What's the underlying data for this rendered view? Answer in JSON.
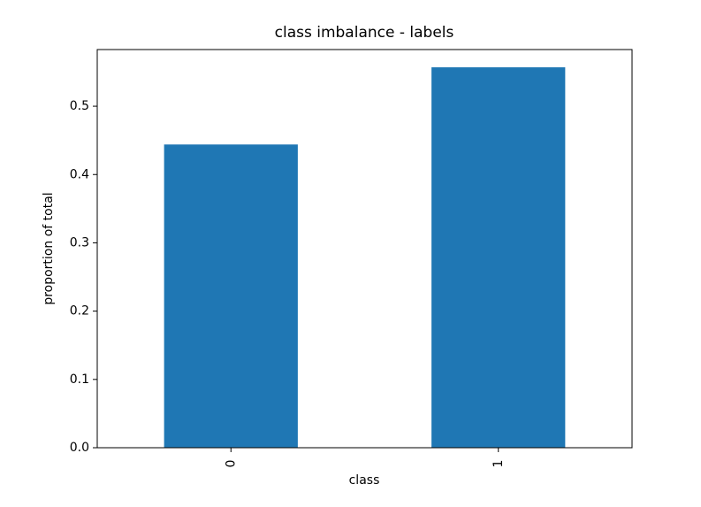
{
  "chart_data": {
    "type": "bar",
    "title": "class imbalance - labels",
    "x_label": "class",
    "y_label": "proportion of total",
    "categories": [
      "0",
      "1"
    ],
    "values": [
      0.444,
      0.557
    ],
    "color": "#1f77b4",
    "ylim": [
      0,
      0.583
    ],
    "yticks": [
      {
        "value": 0,
        "label": "0.0"
      },
      0.1,
      0.2,
      0.3,
      0.4,
      0.5
    ]
  }
}
